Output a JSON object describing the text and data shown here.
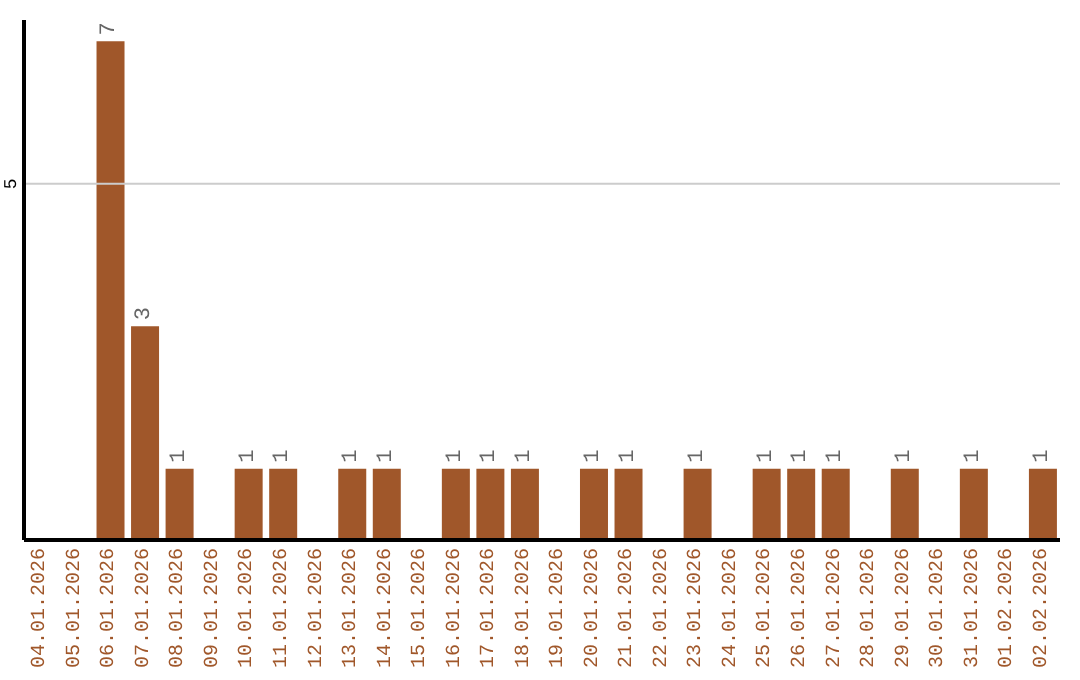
{
  "chart_data": {
    "type": "bar",
    "categories": [
      "04.01.2026",
      "05.01.2026",
      "06.01.2026",
      "07.01.2026",
      "08.01.2026",
      "09.01.2026",
      "10.01.2026",
      "11.01.2026",
      "12.01.2026",
      "13.01.2026",
      "14.01.2026",
      "15.01.2026",
      "16.01.2026",
      "17.01.2026",
      "18.01.2026",
      "19.01.2026",
      "20.01.2026",
      "21.01.2026",
      "22.01.2026",
      "23.01.2026",
      "24.01.2026",
      "25.01.2026",
      "26.01.2026",
      "27.01.2026",
      "28.01.2026",
      "29.01.2026",
      "30.01.2026",
      "31.01.2026",
      "01.02.2026",
      "02.02.2026"
    ],
    "values": [
      null,
      null,
      7,
      3,
      1,
      null,
      1,
      1,
      null,
      1,
      1,
      null,
      1,
      1,
      1,
      null,
      1,
      1,
      null,
      1,
      null,
      1,
      1,
      1,
      null,
      1,
      null,
      1,
      null,
      1
    ],
    "color": "#a0572a",
    "ylim": [
      0,
      7.3
    ],
    "yticks": [
      5
    ],
    "grid": "y",
    "data_labels": true
  }
}
